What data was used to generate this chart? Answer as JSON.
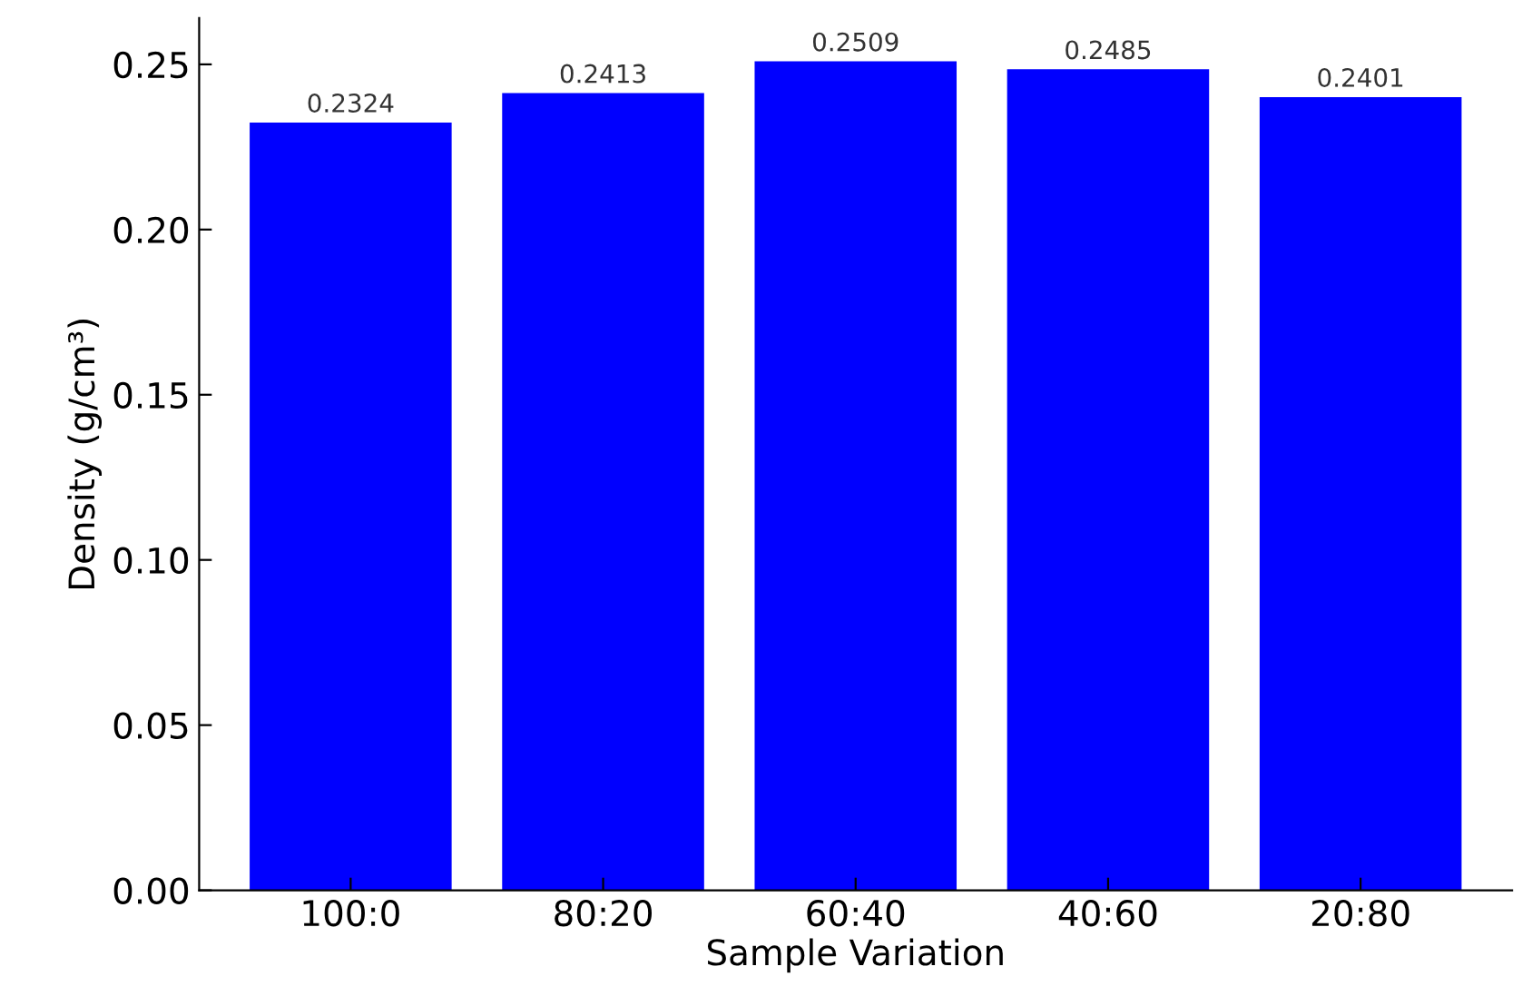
{
  "chart_data": {
    "type": "bar",
    "xlabel": "Sample Variation",
    "ylabel": "Density (g/cm³)",
    "categories": [
      "100:0",
      "80:20",
      "60:40",
      "40:60",
      "20:80"
    ],
    "values": [
      0.2324,
      0.2413,
      0.2509,
      0.2485,
      0.2401
    ],
    "color": "#0000ff",
    "ylim": [
      0,
      0.264
    ],
    "yticks": [
      {
        "value": 0,
        "label": "0.00"
      },
      0.05,
      {
        "value": 0.1,
        "label": "0.10"
      },
      0.15,
      {
        "value": 0.2,
        "label": "0.20"
      },
      0.25
    ],
    "data_labels": true,
    "grid": false
  }
}
